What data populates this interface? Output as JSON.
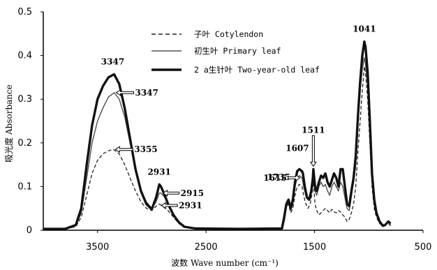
{
  "chart_data": {
    "type": "line",
    "xlabel": "波数 Wave number (cm⁻¹)",
    "ylabel": "吸光度 Absorbance",
    "xlim": [
      4000,
      500
    ],
    "ylim": [
      0,
      0.5
    ],
    "x_ticks": [
      3500,
      2500,
      1500,
      500
    ],
    "y_ticks": [
      0,
      0.1,
      0.2,
      0.3,
      0.4,
      0.5
    ],
    "x_tick_labels": [
      "3500",
      "2500",
      "1500",
      "500"
    ],
    "y_tick_labels": [
      "0",
      "0.1",
      "0.2",
      "0.3",
      "0.4",
      "0.5"
    ],
    "grid": false,
    "legend_position": "top-center",
    "series": [
      {
        "name": "子叶 Cotylendon",
        "style": "dashed",
        "color": "#222222",
        "points": [
          [
            4000,
            0.003
          ],
          [
            3800,
            0.003
          ],
          [
            3700,
            0.008
          ],
          [
            3650,
            0.03
          ],
          [
            3600,
            0.08
          ],
          [
            3550,
            0.13
          ],
          [
            3500,
            0.16
          ],
          [
            3450,
            0.175
          ],
          [
            3400,
            0.182
          ],
          [
            3355,
            0.185
          ],
          [
            3300,
            0.175
          ],
          [
            3250,
            0.15
          ],
          [
            3200,
            0.12
          ],
          [
            3150,
            0.09
          ],
          [
            3100,
            0.065
          ],
          [
            3050,
            0.05
          ],
          [
            3000,
            0.045
          ],
          [
            2960,
            0.055
          ],
          [
            2931,
            0.06
          ],
          [
            2900,
            0.055
          ],
          [
            2850,
            0.045
          ],
          [
            2800,
            0.03
          ],
          [
            2750,
            0.015
          ],
          [
            2700,
            0.007
          ],
          [
            2600,
            0.004
          ],
          [
            2200,
            0.003
          ],
          [
            1800,
            0.004
          ],
          [
            1780,
            0.02
          ],
          [
            1760,
            0.05
          ],
          [
            1740,
            0.06
          ],
          [
            1720,
            0.04
          ],
          [
            1700,
            0.05
          ],
          [
            1680,
            0.08
          ],
          [
            1660,
            0.1
          ],
          [
            1640,
            0.105
          ],
          [
            1615,
            0.1
          ],
          [
            1600,
            0.08
          ],
          [
            1580,
            0.06
          ],
          [
            1560,
            0.05
          ],
          [
            1540,
            0.06
          ],
          [
            1520,
            0.09
          ],
          [
            1511,
            0.11
          ],
          [
            1495,
            0.06
          ],
          [
            1480,
            0.045
          ],
          [
            1460,
            0.035
          ],
          [
            1440,
            0.04
          ],
          [
            1420,
            0.045
          ],
          [
            1400,
            0.05
          ],
          [
            1380,
            0.045
          ],
          [
            1360,
            0.04
          ],
          [
            1340,
            0.048
          ],
          [
            1320,
            0.042
          ],
          [
            1300,
            0.04
          ],
          [
            1280,
            0.045
          ],
          [
            1260,
            0.042
          ],
          [
            1240,
            0.035
          ],
          [
            1220,
            0.03
          ],
          [
            1200,
            0.02
          ],
          [
            1180,
            0.025
          ],
          [
            1160,
            0.04
          ],
          [
            1140,
            0.06
          ],
          [
            1120,
            0.1
          ],
          [
            1100,
            0.18
          ],
          [
            1080,
            0.25
          ],
          [
            1060,
            0.32
          ],
          [
            1041,
            0.375
          ],
          [
            1030,
            0.36
          ],
          [
            1010,
            0.3
          ],
          [
            990,
            0.2
          ],
          [
            970,
            0.1
          ],
          [
            950,
            0.05
          ],
          [
            930,
            0.03
          ],
          [
            900,
            0.015
          ],
          [
            870,
            0.01
          ],
          [
            850,
            0.012
          ],
          [
            820,
            0.015
          ],
          [
            800,
            0.01
          ]
        ]
      },
      {
        "name": "初生叶 Primary leaf",
        "style": "thin",
        "color": "#555555",
        "points": [
          [
            4000,
            0.003
          ],
          [
            3800,
            0.003
          ],
          [
            3700,
            0.01
          ],
          [
            3650,
            0.04
          ],
          [
            3600,
            0.12
          ],
          [
            3550,
            0.2
          ],
          [
            3500,
            0.25
          ],
          [
            3450,
            0.28
          ],
          [
            3400,
            0.305
          ],
          [
            3347,
            0.315
          ],
          [
            3300,
            0.3
          ],
          [
            3250,
            0.26
          ],
          [
            3200,
            0.2
          ],
          [
            3150,
            0.14
          ],
          [
            3100,
            0.09
          ],
          [
            3050,
            0.065
          ],
          [
            3000,
            0.05
          ],
          [
            2960,
            0.065
          ],
          [
            2931,
            0.085
          ],
          [
            2915,
            0.085
          ],
          [
            2880,
            0.075
          ],
          [
            2850,
            0.06
          ],
          [
            2800,
            0.035
          ],
          [
            2750,
            0.018
          ],
          [
            2700,
            0.008
          ],
          [
            2600,
            0.004
          ],
          [
            2200,
            0.003
          ],
          [
            1800,
            0.004
          ],
          [
            1780,
            0.02
          ],
          [
            1760,
            0.055
          ],
          [
            1740,
            0.065
          ],
          [
            1720,
            0.045
          ],
          [
            1700,
            0.06
          ],
          [
            1680,
            0.1
          ],
          [
            1660,
            0.12
          ],
          [
            1640,
            0.125
          ],
          [
            1615,
            0.12
          ],
          [
            1600,
            0.1
          ],
          [
            1580,
            0.08
          ],
          [
            1560,
            0.07
          ],
          [
            1540,
            0.08
          ],
          [
            1520,
            0.11
          ],
          [
            1511,
            0.13
          ],
          [
            1495,
            0.09
          ],
          [
            1480,
            0.08
          ],
          [
            1460,
            0.1
          ],
          [
            1440,
            0.11
          ],
          [
            1420,
            0.1
          ],
          [
            1400,
            0.105
          ],
          [
            1380,
            0.09
          ],
          [
            1360,
            0.08
          ],
          [
            1340,
            0.1
          ],
          [
            1320,
            0.11
          ],
          [
            1300,
            0.1
          ],
          [
            1280,
            0.09
          ],
          [
            1260,
            0.11
          ],
          [
            1240,
            0.1
          ],
          [
            1220,
            0.075
          ],
          [
            1200,
            0.05
          ],
          [
            1180,
            0.045
          ],
          [
            1160,
            0.08
          ],
          [
            1140,
            0.11
          ],
          [
            1120,
            0.15
          ],
          [
            1100,
            0.24
          ],
          [
            1080,
            0.32
          ],
          [
            1060,
            0.37
          ],
          [
            1041,
            0.395
          ],
          [
            1030,
            0.38
          ],
          [
            1010,
            0.33
          ],
          [
            990,
            0.22
          ],
          [
            970,
            0.12
          ],
          [
            950,
            0.06
          ],
          [
            930,
            0.035
          ],
          [
            900,
            0.02
          ],
          [
            870,
            0.01
          ],
          [
            850,
            0.012
          ],
          [
            820,
            0.018
          ],
          [
            800,
            0.012
          ]
        ]
      },
      {
        "name": "2 a生针叶 Two-year-old leaf",
        "style": "thick",
        "color": "#111111",
        "points": [
          [
            4000,
            0.003
          ],
          [
            3800,
            0.003
          ],
          [
            3700,
            0.012
          ],
          [
            3650,
            0.05
          ],
          [
            3600,
            0.15
          ],
          [
            3550,
            0.24
          ],
          [
            3500,
            0.3
          ],
          [
            3450,
            0.33
          ],
          [
            3400,
            0.35
          ],
          [
            3347,
            0.357
          ],
          [
            3300,
            0.335
          ],
          [
            3250,
            0.28
          ],
          [
            3200,
            0.21
          ],
          [
            3150,
            0.14
          ],
          [
            3100,
            0.09
          ],
          [
            3050,
            0.06
          ],
          [
            3000,
            0.048
          ],
          [
            2960,
            0.075
          ],
          [
            2931,
            0.105
          ],
          [
            2915,
            0.1
          ],
          [
            2880,
            0.08
          ],
          [
            2850,
            0.06
          ],
          [
            2800,
            0.035
          ],
          [
            2750,
            0.018
          ],
          [
            2700,
            0.008
          ],
          [
            2600,
            0.004
          ],
          [
            2200,
            0.003
          ],
          [
            1800,
            0.004
          ],
          [
            1780,
            0.03
          ],
          [
            1760,
            0.06
          ],
          [
            1740,
            0.07
          ],
          [
            1720,
            0.05
          ],
          [
            1700,
            0.07
          ],
          [
            1680,
            0.11
          ],
          [
            1660,
            0.135
          ],
          [
            1640,
            0.14
          ],
          [
            1615,
            0.135
          ],
          [
            1607,
            0.13
          ],
          [
            1590,
            0.1
          ],
          [
            1570,
            0.075
          ],
          [
            1550,
            0.07
          ],
          [
            1530,
            0.09
          ],
          [
            1515,
            0.12
          ],
          [
            1511,
            0.14
          ],
          [
            1495,
            0.1
          ],
          [
            1480,
            0.09
          ],
          [
            1460,
            0.11
          ],
          [
            1440,
            0.125
          ],
          [
            1420,
            0.12
          ],
          [
            1400,
            0.13
          ],
          [
            1380,
            0.11
          ],
          [
            1360,
            0.1
          ],
          [
            1340,
            0.115
          ],
          [
            1320,
            0.13
          ],
          [
            1300,
            0.12
          ],
          [
            1280,
            0.1
          ],
          [
            1260,
            0.14
          ],
          [
            1240,
            0.14
          ],
          [
            1220,
            0.1
          ],
          [
            1200,
            0.06
          ],
          [
            1180,
            0.055
          ],
          [
            1160,
            0.09
          ],
          [
            1140,
            0.12
          ],
          [
            1120,
            0.17
          ],
          [
            1100,
            0.26
          ],
          [
            1080,
            0.34
          ],
          [
            1060,
            0.4
          ],
          [
            1041,
            0.432
          ],
          [
            1030,
            0.42
          ],
          [
            1010,
            0.36
          ],
          [
            990,
            0.25
          ],
          [
            970,
            0.13
          ],
          [
            950,
            0.07
          ],
          [
            930,
            0.04
          ],
          [
            900,
            0.02
          ],
          [
            870,
            0.01
          ],
          [
            850,
            0.012
          ],
          [
            820,
            0.02
          ],
          [
            800,
            0.015
          ]
        ]
      }
    ],
    "annotations": [
      {
        "text": "3347",
        "x": 3347,
        "y": 0.357,
        "arrow": false
      },
      {
        "text": "3347",
        "x": 3347,
        "y": 0.315,
        "arrow": true
      },
      {
        "text": "3355",
        "x": 3355,
        "y": 0.185,
        "arrow": true
      },
      {
        "text": "2931",
        "x": 2931,
        "y": 0.105,
        "arrow": false
      },
      {
        "text": "2915",
        "x": 2915,
        "y": 0.085,
        "arrow": true
      },
      {
        "text": "2931",
        "x": 2931,
        "y": 0.06,
        "arrow": true
      },
      {
        "text": "1735",
        "x": 1740,
        "y": 0.07,
        "arrow": false
      },
      {
        "text": "1615",
        "x": 1615,
        "y": 0.12,
        "arrow": true
      },
      {
        "text": "1607",
        "x": 1607,
        "y": 0.14,
        "arrow": false
      },
      {
        "text": "1511",
        "x": 1511,
        "y": 0.14,
        "arrow": true
      },
      {
        "text": "1041",
        "x": 1041,
        "y": 0.432,
        "arrow": false
      }
    ]
  }
}
